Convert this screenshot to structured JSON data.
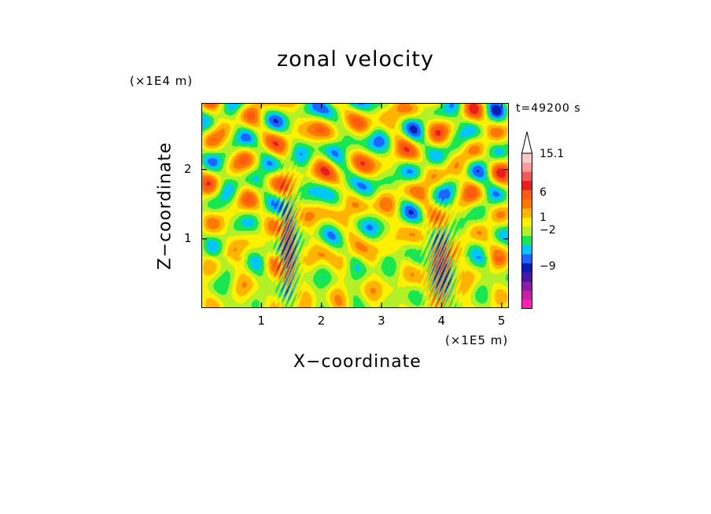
{
  "chart_data": {
    "type": "heatmap",
    "title": "zonal velocity",
    "xlabel": "X−coordinate",
    "ylabel": "Z−coordinate",
    "x_unit_label": "(×1E5 m)",
    "y_unit_label": "(×1E4 m)",
    "time_label": "t=49200 s",
    "xlim": [
      0,
      5.12
    ],
    "ylim": [
      0,
      2.96
    ],
    "x_ticks": [
      1,
      2,
      3,
      4,
      5
    ],
    "x_tick_labels": [
      "1",
      "2",
      "3",
      "4",
      "5"
    ],
    "y_ticks": [
      1,
      2
    ],
    "y_tick_labels": [
      "1",
      "2"
    ],
    "colorbar": {
      "levels_bottom_to_top": [
        {
          "color": "#ff1fb4"
        },
        {
          "color": "#c81ea6"
        },
        {
          "color": "#8c1aa6"
        },
        {
          "color": "#4b14a8"
        },
        {
          "color": "#0a1eb4"
        },
        {
          "color": "#1e64ff"
        },
        {
          "color": "#00c8ff"
        },
        {
          "color": "#18e850"
        },
        {
          "color": "#b4f028"
        },
        {
          "color": "#fff000"
        },
        {
          "color": "#ffb400"
        },
        {
          "color": "#ff7800"
        },
        {
          "color": "#ff5a14"
        },
        {
          "color": "#e61e1e"
        },
        {
          "color": "#f05a5a"
        },
        {
          "color": "#fa9b9b"
        },
        {
          "color": "#fcc8c8"
        }
      ],
      "tick_labels": [
        "15.1",
        "6",
        "1",
        "−2",
        "−9"
      ],
      "tick_values": [
        15.1,
        6,
        1,
        -2,
        -9
      ],
      "extend_top_arrow": true
    }
  }
}
